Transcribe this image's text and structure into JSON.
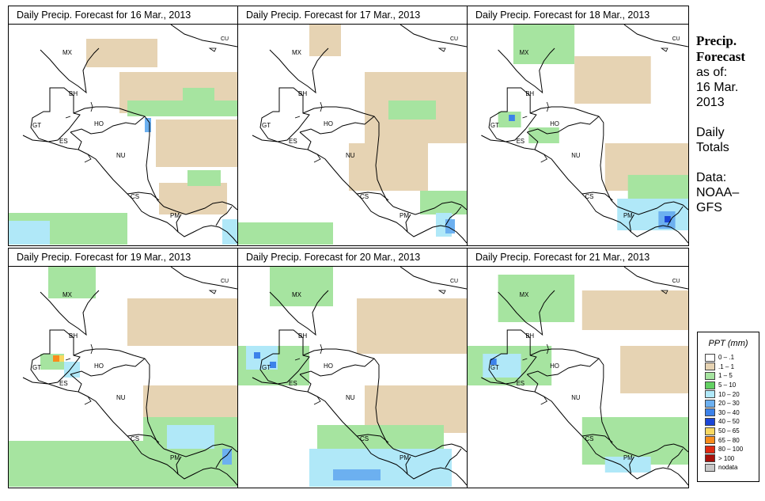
{
  "panels": [
    {
      "title": "Daily Precip. Forecast for  16 Mar., 2013"
    },
    {
      "title": "Daily Precip. Forecast for  17 Mar., 2013"
    },
    {
      "title": "Daily Precip. Forecast for  18 Mar., 2013"
    },
    {
      "title": "Daily Precip. Forecast for  19 Mar., 2013"
    },
    {
      "title": "Daily Precip. Forecast for  20 Mar., 2013"
    },
    {
      "title": "Daily Precip. Forecast for  21 Mar., 2013"
    }
  ],
  "country_labels": {
    "cu": "CU",
    "mx": "MX",
    "bh": "BH",
    "gt": "GT",
    "ho": "HO",
    "es": "ES",
    "nu": "NU",
    "cs": "CS",
    "pm": "PM"
  },
  "side": {
    "title_line1": "Precip.",
    "title_line2": "Forecast",
    "asof_line1": "as of:",
    "asof_line2": "16 Mar.",
    "asof_line3": "2013",
    "daily_line1": "Daily",
    "daily_line2": "Totals",
    "data_line1": "Data:",
    "data_line2": "NOAA–",
    "data_line3": "GFS"
  },
  "legend": {
    "title": "PPT (mm)",
    "items": [
      {
        "label": "0 – .1",
        "color": "#ffffff"
      },
      {
        "label": ".1 – 1",
        "color": "#e6d3b3"
      },
      {
        "label": "1 – 5",
        "color": "#a6e4a0"
      },
      {
        "label": "5 – 10",
        "color": "#62d062"
      },
      {
        "label": "10 – 20",
        "color": "#b0e8f8"
      },
      {
        "label": "20 – 30",
        "color": "#6cb0f0"
      },
      {
        "label": "30 – 40",
        "color": "#3c82ea"
      },
      {
        "label": "40 – 50",
        "color": "#1a46d8"
      },
      {
        "label": "50 – 65",
        "color": "#f8d860"
      },
      {
        "label": "65 – 80",
        "color": "#f88c1c"
      },
      {
        "label": "80 – 100",
        "color": "#e02a12"
      },
      {
        "label": "> 100",
        "color": "#a8100a"
      },
      {
        "label": "nodata",
        "color": "#c8c8c8"
      }
    ]
  }
}
